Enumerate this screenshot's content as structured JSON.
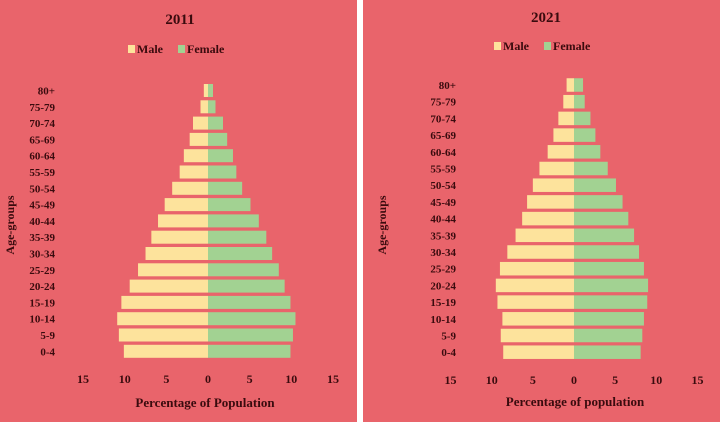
{
  "colors": {
    "background": "#e9646b",
    "separator": "#ffffff",
    "male": "#fde39c",
    "female": "#a2d292",
    "text": "#3a0b0e"
  },
  "chart_data": [
    {
      "type": "bar",
      "orientation": "horizontal",
      "subtype": "population-pyramid",
      "title": "2011",
      "xlabel": "Percentage of Population",
      "ylabel": "Age-groups",
      "xlim": [
        -15,
        15
      ],
      "xticks": [
        "15",
        "10",
        "5",
        "0",
        "5",
        "10",
        "15"
      ],
      "legend": "top",
      "categories": [
        "80+",
        "75-79",
        "70-74",
        "65-69",
        "60-64",
        "55-59",
        "50-54",
        "45-49",
        "40-44",
        "35-39",
        "30-34",
        "25-29",
        "20-24",
        "15-19",
        "10-14",
        "5-9",
        "0-4"
      ],
      "series": [
        {
          "name": "Male",
          "values": [
            0.5,
            0.9,
            1.8,
            2.2,
            2.9,
            3.4,
            4.3,
            5.2,
            6.0,
            6.8,
            7.5,
            8.4,
            9.4,
            10.4,
            10.9,
            10.7,
            10.1
          ]
        },
        {
          "name": "Female",
          "values": [
            0.6,
            0.9,
            1.8,
            2.3,
            3.0,
            3.4,
            4.1,
            5.1,
            6.1,
            7.0,
            7.7,
            8.5,
            9.2,
            9.9,
            10.5,
            10.2,
            9.9
          ]
        }
      ]
    },
    {
      "type": "bar",
      "orientation": "horizontal",
      "subtype": "population-pyramid",
      "title": "2021",
      "xlabel": "Percentage of population",
      "ylabel": "Age-groups",
      "xlim": [
        -15,
        15
      ],
      "xticks": [
        "15",
        "10",
        "5",
        "0",
        "5",
        "10",
        "15"
      ],
      "legend": "top",
      "categories": [
        "80+",
        "75-79",
        "70-74",
        "65-69",
        "60-64",
        "55-59",
        "50-54",
        "45-49",
        "40-44",
        "35-39",
        "30-34",
        "25-29",
        "20-24",
        "15-19",
        "10-14",
        "5-9",
        "0-4"
      ],
      "series": [
        {
          "name": "Male",
          "values": [
            0.9,
            1.3,
            1.9,
            2.5,
            3.2,
            4.2,
            5.0,
            5.7,
            6.3,
            7.1,
            8.1,
            9.0,
            9.5,
            9.3,
            8.7,
            8.9,
            8.6
          ]
        },
        {
          "name": "Female",
          "values": [
            1.1,
            1.3,
            2.0,
            2.6,
            3.2,
            4.1,
            5.1,
            5.9,
            6.6,
            7.3,
            7.9,
            8.5,
            9.0,
            8.9,
            8.5,
            8.3,
            8.1
          ]
        }
      ]
    }
  ]
}
